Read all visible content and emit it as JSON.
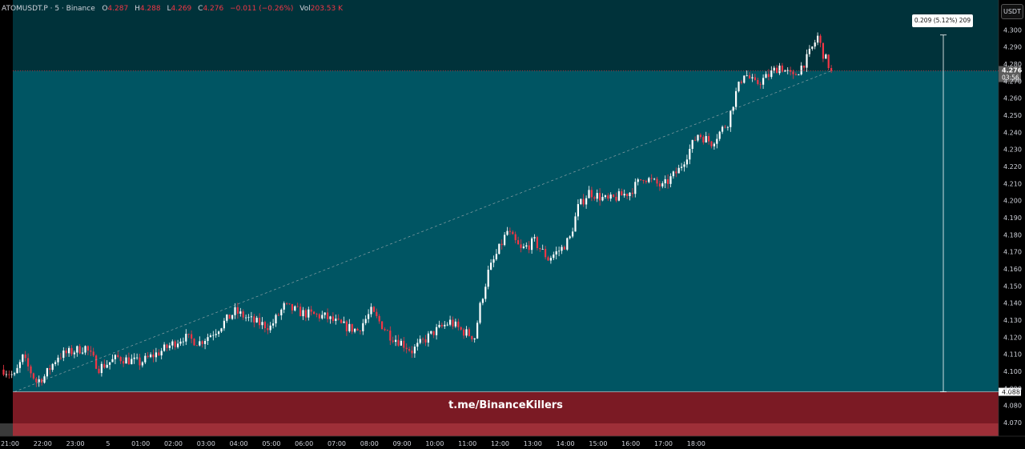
{
  "ticker": {
    "symbol": "ATOMUSDT.P · 5 · Binance",
    "open_label": "O",
    "open": "4.287",
    "high_label": "H",
    "high": "4.288",
    "low_label": "L",
    "low": "4.269",
    "close_label": "C",
    "close": "4.276",
    "change": "−0.011 (−0.26%)",
    "volume_label": "Vol",
    "volume": "203.53 K"
  },
  "currency": "USDT",
  "measure_label": "0.209 (5.12%) 209",
  "watermark": "t.me/BinanceKillers",
  "colors": {
    "up": "#ffffff",
    "down": "#f23645",
    "target_zone": "#005563",
    "target_zone_upper": "#00323a",
    "stop_zone": "#7b1a24",
    "stop_zone_lower": "#9e2f38"
  },
  "chart_data": {
    "type": "candlestick",
    "interval": "5",
    "ylim": [
      4.062,
      4.3175
    ],
    "y_ticks": [
      "4.300",
      "4.290",
      "4.280",
      "4.270",
      "4.260",
      "4.250",
      "4.240",
      "4.230",
      "4.220",
      "4.210",
      "4.200",
      "4.190",
      "4.180",
      "4.170",
      "4.160",
      "4.150",
      "4.140",
      "4.130",
      "4.120",
      "4.110",
      "4.100",
      "4.090",
      "4.080",
      "4.070"
    ],
    "x_ticks": [
      "21:00",
      "22:00",
      "23:00",
      "5",
      "01:00",
      "02:00",
      "03:00",
      "04:00",
      "05:00",
      "06:00",
      "07:00",
      "08:00",
      "09:00",
      "10:00",
      "11:00",
      "12:00",
      "13:00",
      "14:00",
      "15:00",
      "16:00",
      "17:00",
      "18:00"
    ],
    "current_price": "4.276",
    "countdown": "03:56",
    "entry_price": "4.088",
    "target_zone": [
      4.088,
      4.276
    ],
    "stop_zone": [
      4.062,
      4.088
    ],
    "measure": {
      "from": 4.088,
      "to": 4.297,
      "change": "0.209",
      "percent": "5.12%",
      "bars": "209"
    },
    "waypoints": [
      [
        0,
        4.101
      ],
      [
        4,
        4.097
      ],
      [
        7,
        4.108
      ],
      [
        12,
        4.094
      ],
      [
        15,
        4.097
      ],
      [
        20,
        4.109
      ],
      [
        30,
        4.114
      ],
      [
        35,
        4.102
      ],
      [
        42,
        4.108
      ],
      [
        50,
        4.105
      ],
      [
        58,
        4.112
      ],
      [
        66,
        4.12
      ],
      [
        72,
        4.117
      ],
      [
        78,
        4.124
      ],
      [
        85,
        4.135
      ],
      [
        92,
        4.129
      ],
      [
        98,
        4.126
      ],
      [
        103,
        4.138
      ],
      [
        110,
        4.134
      ],
      [
        118,
        4.132
      ],
      [
        124,
        4.127
      ],
      [
        130,
        4.124
      ],
      [
        135,
        4.135
      ],
      [
        142,
        4.121
      ],
      [
        146,
        4.117
      ],
      [
        150,
        4.112
      ],
      [
        158,
        4.123
      ],
      [
        164,
        4.129
      ],
      [
        168,
        4.124
      ],
      [
        173,
        4.12
      ],
      [
        175,
        4.138
      ],
      [
        178,
        4.158
      ],
      [
        185,
        4.182
      ],
      [
        190,
        4.171
      ],
      [
        195,
        4.176
      ],
      [
        200,
        4.166
      ],
      [
        205,
        4.172
      ],
      [
        208,
        4.178
      ],
      [
        211,
        4.196
      ],
      [
        215,
        4.205
      ],
      [
        222,
        4.2
      ],
      [
        230,
        4.205
      ],
      [
        235,
        4.214
      ],
      [
        242,
        4.208
      ],
      [
        248,
        4.218
      ],
      [
        255,
        4.239
      ],
      [
        260,
        4.234
      ],
      [
        266,
        4.246
      ],
      [
        269,
        4.263
      ],
      [
        272,
        4.275
      ],
      [
        276,
        4.268
      ],
      [
        280,
        4.272
      ],
      [
        285,
        4.279
      ],
      [
        290,
        4.272
      ],
      [
        295,
        4.283
      ],
      [
        299,
        4.296
      ],
      [
        301,
        4.286
      ],
      [
        304,
        4.276
      ]
    ]
  }
}
